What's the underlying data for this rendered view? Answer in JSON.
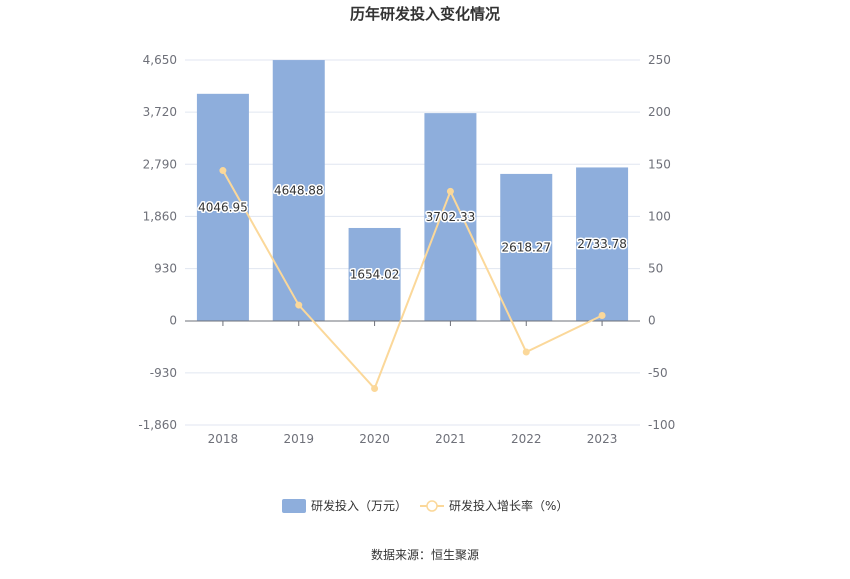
{
  "chart_data": {
    "type": "bar",
    "title": "历年研发投入变化情况",
    "categories": [
      "2018",
      "2019",
      "2020",
      "2021",
      "2022",
      "2023"
    ],
    "series": [
      {
        "name": "研发投入（万元）",
        "type": "bar",
        "axis": "left",
        "color": "#8eaedc",
        "values": [
          4046.95,
          4648.88,
          1654.02,
          3702.33,
          2618.27,
          2733.78
        ],
        "labels": [
          "4046.95",
          "4648.88",
          "1654.02",
          "3702.33",
          "2618.27",
          "2733.78"
        ]
      },
      {
        "name": "研发投入增长率（%）",
        "type": "line",
        "axis": "right",
        "color": "#fbd89a",
        "values": [
          144,
          15,
          -65,
          124,
          -30,
          5
        ]
      }
    ],
    "left_axis": {
      "ylim": [
        -1860,
        4650
      ],
      "ticks": [
        4650,
        3720,
        2790,
        1860,
        930,
        0,
        -930,
        -1860
      ],
      "tick_labels": [
        "4,650",
        "3,720",
        "2,790",
        "1,860",
        "930",
        "0",
        "-930",
        "-1,860"
      ]
    },
    "right_axis": {
      "ylim": [
        -100,
        250
      ],
      "ticks": [
        250,
        200,
        150,
        100,
        50,
        0,
        -50,
        -100
      ],
      "tick_labels": [
        "250",
        "200",
        "150",
        "100",
        "50",
        "0",
        "-50",
        "-100"
      ]
    },
    "grid": true,
    "legend_position": "bottom-center",
    "source": "数据来源：恒生聚源"
  }
}
